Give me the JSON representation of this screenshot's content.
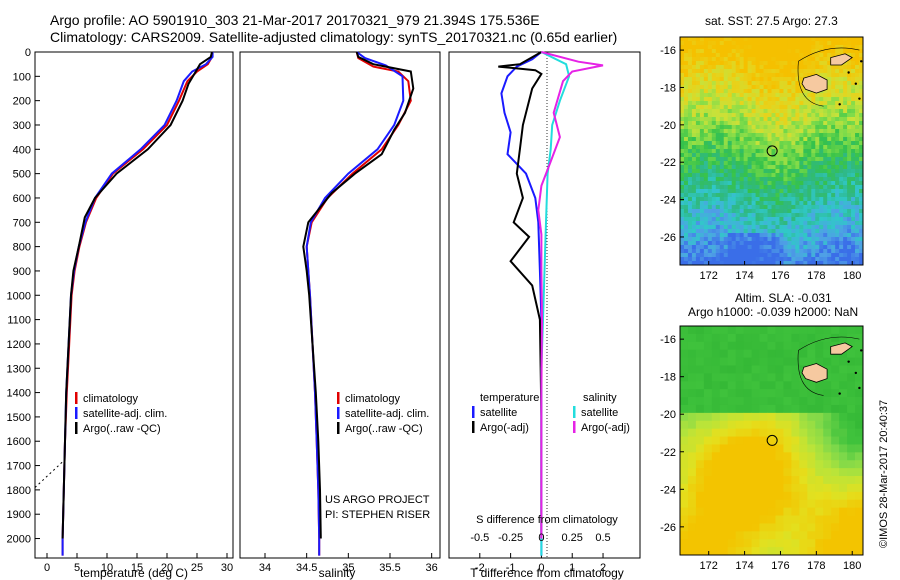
{
  "header": {
    "line1": "Argo profile: AO 5901910_303 21-Mar-2017 20170321_979 21.394S 175.536E",
    "line2": "Climatology: CARS2009. Satellite-adjusted climatology: synTS_20170321.nc (0.65d earlier)"
  },
  "colors": {
    "climatology": "#e00000",
    "satellite": "#1a1aff",
    "argo": "#000000",
    "salinity_satellite": "#22dddd",
    "salinity_argo": "#e622e6"
  },
  "chart_data": [
    {
      "type": "line",
      "id": "temperature",
      "xlabel": "temperature (deg C)",
      "ylabel": "",
      "xticks": [
        0,
        5,
        10,
        15,
        20,
        25,
        30
      ],
      "xlim": [
        -2,
        31
      ],
      "ylim": [
        2080,
        0
      ],
      "yticks": [
        0,
        100,
        200,
        300,
        400,
        500,
        600,
        700,
        800,
        900,
        1000,
        1100,
        1200,
        1300,
        1400,
        1500,
        1600,
        1700,
        1800,
        1900,
        2000
      ],
      "legend": {
        "position": "lower-center",
        "entries": [
          "climatology",
          "satellite-adj. clim.",
          "Argo(..raw -QC)"
        ]
      },
      "series": [
        {
          "name": "climatology",
          "color": "#e00000",
          "points": [
            [
              27.6,
              0
            ],
            [
              27.5,
              20
            ],
            [
              26.8,
              50
            ],
            [
              25.0,
              80
            ],
            [
              23.4,
              120
            ],
            [
              22.0,
              200
            ],
            [
              20.0,
              300
            ],
            [
              16.0,
              400
            ],
            [
              11.0,
              500
            ],
            [
              8.2,
              600
            ],
            [
              6.5,
              700
            ],
            [
              5.4,
              800
            ],
            [
              4.6,
              900
            ],
            [
              4.1,
              1000
            ],
            [
              3.7,
              1200
            ],
            [
              3.3,
              1400
            ],
            [
              3.0,
              1600
            ],
            [
              2.8,
              1800
            ],
            [
              2.6,
              2000
            ],
            [
              2.6,
              2070
            ]
          ]
        },
        {
          "name": "satellite-adj. clim.",
          "color": "#1a1aff",
          "points": [
            [
              27.6,
              0
            ],
            [
              27.6,
              20
            ],
            [
              26.5,
              50
            ],
            [
              24.2,
              80
            ],
            [
              22.8,
              120
            ],
            [
              21.6,
              200
            ],
            [
              19.6,
              300
            ],
            [
              15.6,
              400
            ],
            [
              10.8,
              500
            ],
            [
              8.0,
              600
            ],
            [
              6.4,
              700
            ],
            [
              5.3,
              800
            ],
            [
              4.5,
              900
            ],
            [
              4.0,
              1000
            ],
            [
              3.6,
              1200
            ],
            [
              3.2,
              1400
            ],
            [
              3.0,
              1600
            ],
            [
              2.8,
              1800
            ],
            [
              2.6,
              2000
            ],
            [
              2.6,
              2070
            ]
          ]
        },
        {
          "name": "Argo(..raw -QC)",
          "color": "#000000",
          "points": [
            [
              27.5,
              0
            ],
            [
              27.3,
              20
            ],
            [
              25.5,
              50
            ],
            [
              24.8,
              80
            ],
            [
              23.6,
              130
            ],
            [
              22.6,
              200
            ],
            [
              20.6,
              300
            ],
            [
              16.8,
              400
            ],
            [
              11.6,
              500
            ],
            [
              8.0,
              600
            ],
            [
              6.3,
              680
            ],
            [
              5.3,
              800
            ],
            [
              4.4,
              900
            ],
            [
              4.0,
              1000
            ],
            [
              3.6,
              1200
            ],
            [
              3.2,
              1400
            ],
            [
              3.0,
              1600
            ],
            [
              2.8,
              1800
            ],
            [
              2.6,
              2000
            ]
          ]
        },
        {
          "name": "",
          "color": "#000000",
          "dotted": true,
          "points": [
            [
              -2,
              1790
            ],
            [
              2.8,
              1680
            ]
          ]
        }
      ]
    },
    {
      "type": "line",
      "id": "salinity",
      "xlabel": "salinity",
      "ylabel": "",
      "xticks": [
        34,
        34.5,
        35,
        35.5,
        36
      ],
      "xlim": [
        33.7,
        36.1
      ],
      "ylim": [
        2080,
        0
      ],
      "legend": {
        "position": "lower-center",
        "entries": [
          "climatology",
          "satellite-adj. clim.",
          "Argo(..raw -QC)"
        ]
      },
      "annotation": [
        "US ARGO PROJECT",
        "PI: STEPHEN RISER"
      ],
      "series": [
        {
          "name": "climatology",
          "color": "#e00000",
          "points": [
            [
              35.1,
              0
            ],
            [
              35.12,
              25
            ],
            [
              35.3,
              60
            ],
            [
              35.6,
              80
            ],
            [
              35.72,
              120
            ],
            [
              35.75,
              200
            ],
            [
              35.6,
              300
            ],
            [
              35.4,
              400
            ],
            [
              35.05,
              500
            ],
            [
              34.75,
              600
            ],
            [
              34.56,
              700
            ],
            [
              34.5,
              800
            ],
            [
              34.52,
              900
            ],
            [
              34.54,
              1000
            ],
            [
              34.57,
              1200
            ],
            [
              34.6,
              1400
            ],
            [
              34.62,
              1600
            ],
            [
              34.64,
              1800
            ],
            [
              34.65,
              2000
            ],
            [
              34.65,
              2070
            ]
          ]
        },
        {
          "name": "satellite-adj. clim.",
          "color": "#1a1aff",
          "points": [
            [
              35.1,
              0
            ],
            [
              35.2,
              25
            ],
            [
              35.45,
              55
            ],
            [
              35.65,
              100
            ],
            [
              35.66,
              200
            ],
            [
              35.55,
              300
            ],
            [
              35.35,
              400
            ],
            [
              35.0,
              500
            ],
            [
              34.72,
              600
            ],
            [
              34.55,
              700
            ],
            [
              34.5,
              800
            ],
            [
              34.52,
              900
            ],
            [
              34.54,
              1000
            ],
            [
              34.57,
              1200
            ],
            [
              34.6,
              1400
            ],
            [
              34.62,
              1600
            ],
            [
              34.64,
              1800
            ],
            [
              34.65,
              2000
            ],
            [
              34.65,
              2070
            ]
          ]
        },
        {
          "name": "Argo(..raw -QC)",
          "color": "#000000",
          "points": [
            [
              35.1,
              0
            ],
            [
              35.12,
              20
            ],
            [
              35.3,
              50
            ],
            [
              35.75,
              80
            ],
            [
              35.78,
              150
            ],
            [
              35.68,
              250
            ],
            [
              35.55,
              320
            ],
            [
              35.4,
              420
            ],
            [
              35.08,
              500
            ],
            [
              34.8,
              580
            ],
            [
              34.52,
              700
            ],
            [
              34.46,
              800
            ],
            [
              34.5,
              900
            ],
            [
              34.53,
              1000
            ],
            [
              34.57,
              1200
            ],
            [
              34.61,
              1400
            ],
            [
              34.64,
              1600
            ],
            [
              34.66,
              1800
            ],
            [
              34.67,
              2000
            ]
          ]
        }
      ]
    },
    {
      "type": "line",
      "id": "difference",
      "xlabel": "T difference from climatology",
      "x2label": "S difference from climatology",
      "xticks": [
        -2,
        -1,
        0,
        1,
        2
      ],
      "x2ticks": [
        -0.5,
        -0.25,
        0,
        0.25,
        0.5
      ],
      "x2ticklabels": [
        "-0.5",
        "-0.25",
        "0",
        "0.25",
        "0.5"
      ],
      "xlim": [
        -3,
        3.2
      ],
      "ylim": [
        2080,
        0
      ],
      "legend": {
        "position": "lower-center",
        "temperature_header": "temperature",
        "salinity_header": "salinity",
        "entries": [
          "satellite",
          "Argo(-adj)",
          "satellite",
          "Argo(-adj)"
        ]
      },
      "series": [
        {
          "name": "satellite",
          "group": "temperature",
          "color": "#1a1aff",
          "points": [
            [
              0,
              0
            ],
            [
              -0.3,
              30
            ],
            [
              -0.8,
              60
            ],
            [
              -1.1,
              100
            ],
            [
              -1.3,
              170
            ],
            [
              -1.2,
              250
            ],
            [
              -1.0,
              330
            ],
            [
              -1.1,
              420
            ],
            [
              -0.5,
              500
            ],
            [
              -0.2,
              600
            ],
            [
              -0.1,
              700
            ],
            [
              -0.05,
              900
            ],
            [
              0,
              1100
            ],
            [
              0,
              2070
            ]
          ]
        },
        {
          "name": "Argo(-adj)",
          "group": "temperature",
          "color": "#000000",
          "points": [
            [
              0,
              0
            ],
            [
              -0.7,
              50
            ],
            [
              -1.4,
              60
            ],
            [
              -0.2,
              75
            ],
            [
              0,
              90
            ],
            [
              -0.3,
              150
            ],
            [
              -0.6,
              300
            ],
            [
              -0.7,
              400
            ],
            [
              -0.8,
              500
            ],
            [
              -0.6,
              600
            ],
            [
              -0.9,
              700
            ],
            [
              -0.4,
              760
            ],
            [
              -1.0,
              860
            ],
            [
              -0.3,
              960
            ],
            [
              -0.05,
              1100
            ],
            [
              0,
              1500
            ],
            [
              0,
              2000
            ]
          ]
        },
        {
          "name": "satellite",
          "group": "salinity",
          "color": "#22dddd",
          "points": [
            [
              0,
              0
            ],
            [
              0.8,
              50
            ],
            [
              0.9,
              100
            ],
            [
              0.6,
              200
            ],
            [
              0.35,
              300
            ],
            [
              0.3,
              400
            ],
            [
              0.2,
              500
            ],
            [
              0.15,
              700
            ],
            [
              0.1,
              900
            ],
            [
              0.05,
              1100
            ],
            [
              0,
              1300
            ],
            [
              0,
              2070
            ]
          ]
        },
        {
          "name": "Argo(-adj)",
          "group": "salinity",
          "color": "#e622e6",
          "points": [
            [
              0,
              0
            ],
            [
              1.2,
              40
            ],
            [
              2.0,
              55
            ],
            [
              1.0,
              80
            ],
            [
              0.7,
              120
            ],
            [
              0.4,
              250
            ],
            [
              0.6,
              350
            ],
            [
              0.3,
              450
            ],
            [
              0.0,
              550
            ],
            [
              -0.1,
              650
            ],
            [
              0.0,
              750
            ],
            [
              0.0,
              900
            ],
            [
              0.02,
              1100
            ],
            [
              0.0,
              1400
            ],
            [
              0.0,
              2000
            ]
          ]
        }
      ]
    },
    {
      "type": "heatmap",
      "id": "sst_map",
      "title": "sat. SST: 27.5 Argo: 27.3",
      "xticks": [
        172,
        174,
        176,
        178,
        180
      ],
      "yticks": [
        -16,
        -18,
        -20,
        -22,
        -24,
        -26
      ],
      "xlim": [
        170.4,
        180.6
      ],
      "ylim": [
        -27.5,
        -15.3
      ],
      "marker": {
        "lon": 175.536,
        "lat": -21.394
      },
      "colors": [
        "#f5c000",
        "#e8d21a",
        "#c8e23a",
        "#7fdc4a",
        "#35c24a",
        "#2fb885",
        "#30c8c8",
        "#4fa0e6",
        "#3a6ee8"
      ]
    },
    {
      "type": "heatmap",
      "id": "sla_map",
      "title_line1": "Altim. SLA: -0.031",
      "title_line2": "Argo h1000: -0.039 h2000: NaN",
      "xticks": [
        172,
        174,
        176,
        178,
        180
      ],
      "yticks": [
        -16,
        -18,
        -20,
        -22,
        -24,
        -26
      ],
      "xlim": [
        170.4,
        180.6
      ],
      "ylim": [
        -27.5,
        -15.3
      ],
      "marker": {
        "lon": 175.536,
        "lat": -21.394
      },
      "colors": [
        "#f3c400",
        "#e4e01e",
        "#b8e43a",
        "#7dd84a",
        "#3fc23c",
        "#2aae30"
      ]
    }
  ],
  "footer": {
    "imos_credit": "©IMOS 28-Mar-2017 20:40:37"
  }
}
